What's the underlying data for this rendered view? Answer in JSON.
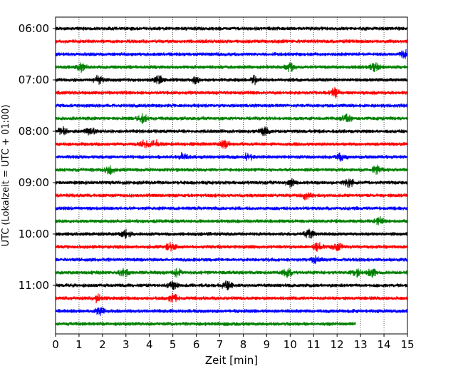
{
  "chart_data": {
    "type": "line",
    "title": "",
    "xlabel": "Zeit  [min]",
    "ylabel": "UTC (Lokalzeit = UTC + 01:00)",
    "xlim": [
      0,
      15
    ],
    "xticks": [
      "0",
      "1",
      "2",
      "3",
      "4",
      "5",
      "6",
      "7",
      "8",
      "9",
      "10",
      "11",
      "12",
      "13",
      "14",
      "15"
    ],
    "yticks": [
      "06:00",
      "07:00",
      "08:00",
      "09:00",
      "10:00",
      "11:00"
    ],
    "grid": "vertical dotted lines at each minute",
    "trace_interval_min": 15,
    "colors_cycle": [
      "#000000",
      "#ff0000",
      "#0000ff",
      "#008000"
    ],
    "series": [
      {
        "time": "06:00",
        "color": "#000000",
        "end_min": 15,
        "events_min": []
      },
      {
        "time": "06:15",
        "color": "#ff0000",
        "end_min": 15,
        "events_min": []
      },
      {
        "time": "06:30",
        "color": "#0000ff",
        "end_min": 15,
        "events_min": [
          14.9
        ]
      },
      {
        "time": "06:45",
        "color": "#008000",
        "end_min": 15,
        "events_min": [
          1.1,
          10.0,
          13.6
        ]
      },
      {
        "time": "07:00",
        "color": "#000000",
        "end_min": 15,
        "events_min": [
          1.8,
          4.4,
          6.0,
          8.5
        ]
      },
      {
        "time": "07:15",
        "color": "#ff0000",
        "end_min": 15,
        "events_min": [
          11.9
        ]
      },
      {
        "time": "07:30",
        "color": "#0000ff",
        "end_min": 15,
        "events_min": []
      },
      {
        "time": "07:45",
        "color": "#008000",
        "end_min": 15,
        "events_min": [
          3.7,
          12.4
        ]
      },
      {
        "time": "08:00",
        "color": "#000000",
        "end_min": 15,
        "events_min": [
          0.3,
          1.5,
          8.9
        ]
      },
      {
        "time": "08:15",
        "color": "#ff0000",
        "end_min": 15,
        "events_min": [
          3.8,
          4.3,
          7.2
        ]
      },
      {
        "time": "08:30",
        "color": "#0000ff",
        "end_min": 15,
        "events_min": [
          5.4,
          8.2,
          12.2
        ]
      },
      {
        "time": "08:45",
        "color": "#008000",
        "end_min": 15,
        "events_min": [
          2.3,
          13.7
        ]
      },
      {
        "time": "09:00",
        "color": "#000000",
        "end_min": 15,
        "events_min": [
          10.0,
          12.5
        ]
      },
      {
        "time": "09:15",
        "color": "#ff0000",
        "end_min": 15,
        "events_min": [
          10.7
        ]
      },
      {
        "time": "09:30",
        "color": "#0000ff",
        "end_min": 15,
        "events_min": []
      },
      {
        "time": "09:45",
        "color": "#008000",
        "end_min": 15,
        "events_min": [
          13.8
        ]
      },
      {
        "time": "10:00",
        "color": "#000000",
        "end_min": 15,
        "events_min": [
          3.0,
          10.8
        ]
      },
      {
        "time": "10:15",
        "color": "#ff0000",
        "end_min": 15,
        "events_min": [
          4.9,
          11.2,
          12.0
        ]
      },
      {
        "time": "10:30",
        "color": "#0000ff",
        "end_min": 15,
        "events_min": [
          11.1
        ]
      },
      {
        "time": "10:45",
        "color": "#008000",
        "end_min": 15,
        "events_min": [
          2.9,
          5.2,
          9.9,
          12.8,
          13.5
        ]
      },
      {
        "time": "11:00",
        "color": "#000000",
        "end_min": 15,
        "events_min": [
          5.0,
          7.3
        ]
      },
      {
        "time": "11:15",
        "color": "#ff0000",
        "end_min": 15,
        "events_min": [
          1.8,
          5.0
        ]
      },
      {
        "time": "11:30",
        "color": "#0000ff",
        "end_min": 15,
        "events_min": [
          1.9
        ]
      },
      {
        "time": "11:45",
        "color": "#008000",
        "end_min": 12.8,
        "events_min": []
      }
    ]
  }
}
